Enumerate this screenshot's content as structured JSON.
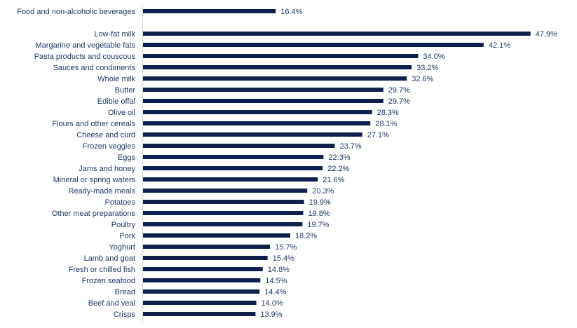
{
  "chart_data": {
    "type": "bar",
    "orientation": "horizontal",
    "title": "",
    "xlabel": "",
    "ylabel": "",
    "grid": false,
    "xlim": [
      0,
      50
    ],
    "bar_color": "#0f1f4e",
    "summary": {
      "category": "Food and non-alcoholic beverages",
      "value": 16.4,
      "label": "16.4%"
    },
    "categories": [
      "Low-fat milk",
      "Margarine and vegetable fats",
      "Pasta products and couscous",
      "Sauces and condiments",
      "Whole milk",
      "Butter",
      "Edible offal",
      "Olive oil",
      "Flours and other cereals",
      "Cheese and curd",
      "Frozen veggies",
      "Eggs",
      "Jams and honey",
      "Mineral or spring waters",
      "Ready-made meals",
      "Potatoes",
      "Other meat preparations",
      "Poultry",
      "Pork",
      "Yoghurt",
      "Lamb and goat",
      "Fresh or chilled fish",
      "Frozen seafood",
      "Bread",
      "Beef and veal",
      "Crisps"
    ],
    "values": [
      47.9,
      42.1,
      34.0,
      33.2,
      32.6,
      29.7,
      29.7,
      28.3,
      28.1,
      27.1,
      23.7,
      22.3,
      22.2,
      21.6,
      20.3,
      19.9,
      19.8,
      19.7,
      18.2,
      15.7,
      15.4,
      14.8,
      14.5,
      14.4,
      14.0,
      13.9
    ],
    "value_labels": [
      "47.9%",
      "42.1%",
      "34.0%",
      "33.2%",
      "32.6%",
      "29.7%",
      "29.7%",
      "28.3%",
      "28.1%",
      "27.1%",
      "23.7%",
      "22.3%",
      "22.2%",
      "21.6%",
      "20.3%",
      "19.9%",
      "19.8%",
      "19.7%",
      "18.2%",
      "15.7%",
      "15.4%",
      "14.8%",
      "14.5%",
      "14.4%",
      "14.0%",
      "13.9%"
    ]
  }
}
